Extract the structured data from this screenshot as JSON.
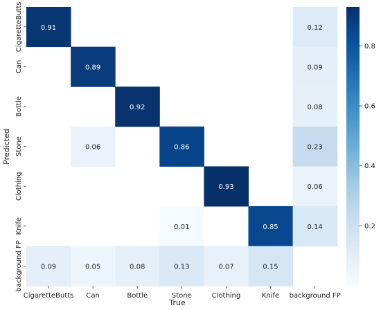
{
  "chart_data": {
    "type": "heatmap",
    "title": "",
    "xlabel": "True",
    "ylabel": "Predicted",
    "x_categories": [
      "CigaretteButts",
      "Can",
      "Bottle",
      "Stone",
      "Clothing",
      "Knife",
      "background FP"
    ],
    "y_categories": [
      "CigaretteButts",
      "Can",
      "Bottle",
      "Stone",
      "Clothing",
      "Knife",
      "background FP"
    ],
    "cells": [
      [
        0.91,
        null,
        null,
        null,
        null,
        null,
        0.12
      ],
      [
        null,
        0.89,
        null,
        null,
        null,
        null,
        0.09
      ],
      [
        null,
        null,
        0.92,
        null,
        null,
        null,
        0.08
      ],
      [
        null,
        0.06,
        null,
        0.86,
        null,
        null,
        0.23
      ],
      [
        null,
        null,
        null,
        null,
        0.93,
        null,
        0.06
      ],
      [
        null,
        null,
        null,
        0.01,
        null,
        0.85,
        0.14
      ],
      [
        0.09,
        0.05,
        0.08,
        0.13,
        0.07,
        0.15,
        null
      ]
    ],
    "colorbar": {
      "colormap": "Blues",
      "range": [
        0,
        0.93
      ],
      "ticks": [
        0.2,
        0.4,
        0.6,
        0.8
      ]
    },
    "grid": false
  }
}
